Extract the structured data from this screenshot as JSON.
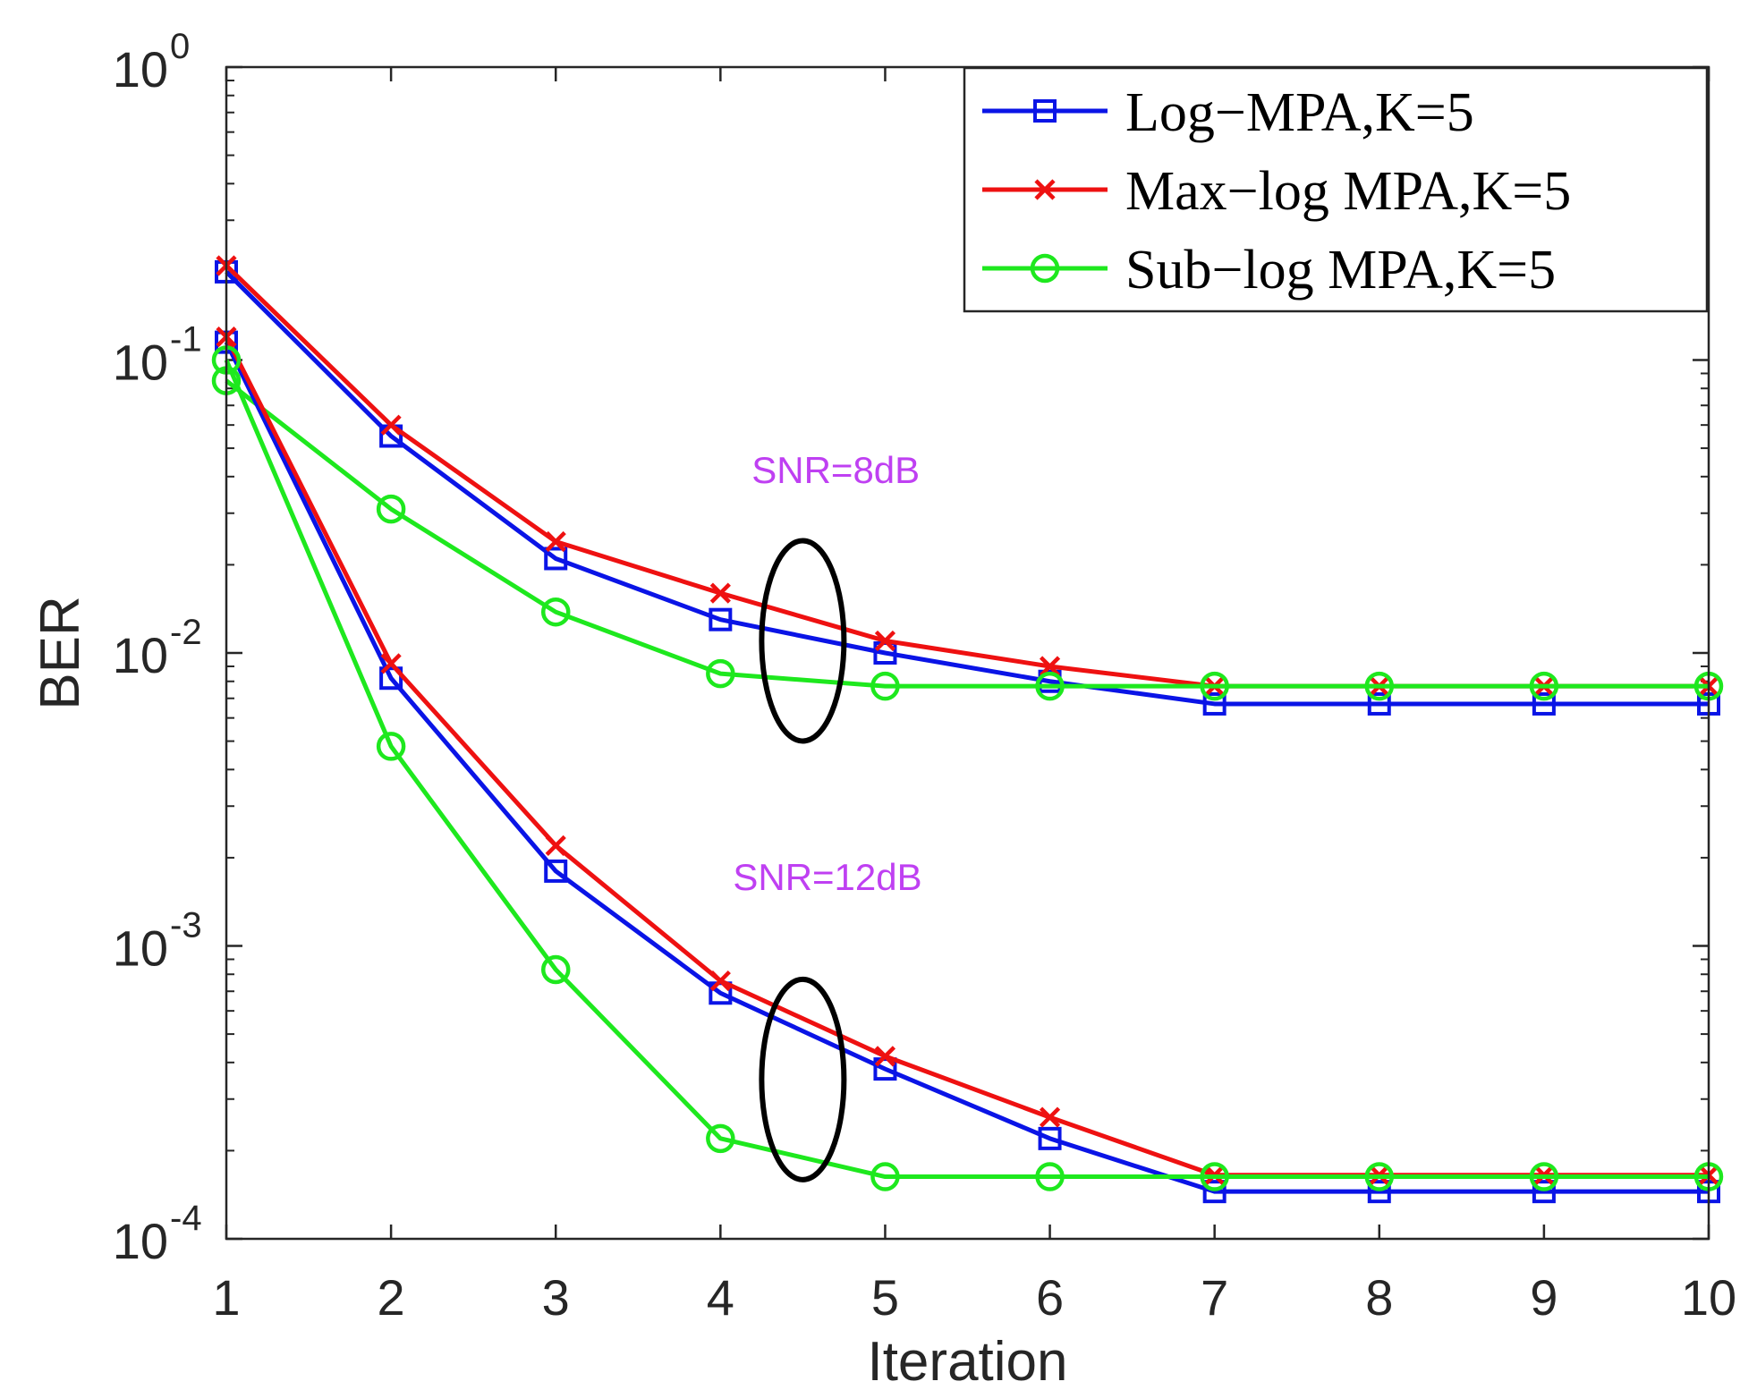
{
  "chart_data": {
    "type": "line",
    "yscale": "log",
    "xlabel": "Iteration",
    "ylabel": "BER",
    "xlim": [
      1,
      10
    ],
    "ylim": [
      0.0001,
      1
    ],
    "x": [
      1,
      2,
      3,
      4,
      5,
      6,
      7,
      8,
      9,
      10
    ],
    "xticks": [
      "1",
      "2",
      "3",
      "4",
      "5",
      "6",
      "7",
      "8",
      "9",
      "10"
    ],
    "yticks": [
      {
        "value": 1,
        "base": "10",
        "exp": "0"
      },
      {
        "value": 0.1,
        "base": "10",
        "exp": "-1"
      },
      {
        "value": 0.01,
        "base": "10",
        "exp": "-2"
      },
      {
        "value": 0.001,
        "base": "10",
        "exp": "-3"
      },
      {
        "value": 0.0001,
        "base": "10",
        "exp": "-4"
      }
    ],
    "grid": false,
    "legend_position": "top-right",
    "series": [
      {
        "name": "Log−MPA,K=5",
        "group": "SNR=8dB",
        "color": "#0a14e6",
        "marker": "square",
        "values": [
          0.2,
          0.055,
          0.021,
          0.013,
          0.01,
          0.008,
          0.0067,
          0.0067,
          0.0067,
          0.0067
        ]
      },
      {
        "name": "Max−log MPA,K=5",
        "group": "SNR=8dB",
        "color": "#ee1111",
        "marker": "x",
        "values": [
          0.21,
          0.06,
          0.024,
          0.016,
          0.011,
          0.009,
          0.0077,
          0.0077,
          0.0077,
          0.0077
        ]
      },
      {
        "name": "Sub−log MPA,K=5",
        "group": "SNR=8dB",
        "color": "#1ee81e",
        "marker": "circle",
        "values": [
          0.085,
          0.031,
          0.0138,
          0.0085,
          0.0077,
          0.0077,
          0.0077,
          0.0077,
          0.0077,
          0.0077
        ]
      },
      {
        "name": "Log−MPA,K=5",
        "group": "SNR=12dB",
        "color": "#0a14e6",
        "marker": "square",
        "values": [
          0.115,
          0.0082,
          0.0018,
          0.00069,
          0.00038,
          0.00022,
          0.000145,
          0.000145,
          0.000145,
          0.000145
        ]
      },
      {
        "name": "Max−log MPA,K=5",
        "group": "SNR=12dB",
        "color": "#ee1111",
        "marker": "x",
        "values": [
          0.12,
          0.0092,
          0.0022,
          0.00076,
          0.00042,
          0.00026,
          0.000165,
          0.000165,
          0.000165,
          0.000165
        ]
      },
      {
        "name": "Sub−log MPA,K=5",
        "group": "SNR=12dB",
        "color": "#1ee81e",
        "marker": "circle",
        "values": [
          0.1,
          0.0048,
          0.00083,
          0.00022,
          0.000163,
          0.000163,
          0.000163,
          0.000163,
          0.000163,
          0.000163
        ]
      }
    ],
    "legend": [
      {
        "label": "Log−MPA,K=5",
        "color": "#0a14e6",
        "marker": "square"
      },
      {
        "label": "Max−log MPA,K=5",
        "color": "#ee1111",
        "marker": "x"
      },
      {
        "label": "Sub−log MPA,K=5",
        "color": "#1ee81e",
        "marker": "circle"
      }
    ],
    "annotations": [
      {
        "text": "SNR=8dB",
        "x": 4.7,
        "y": 0.038,
        "color": "#bf40f2"
      },
      {
        "text": "SNR=12dB",
        "x": 4.65,
        "y": 0.00155,
        "color": "#bf40f2"
      }
    ],
    "ellipses": [
      {
        "group": "SNR=8dB",
        "cx": 4.5,
        "cy": 0.011
      },
      {
        "group": "SNR=12dB",
        "cx": 4.5,
        "cy": 0.00035
      }
    ]
  }
}
